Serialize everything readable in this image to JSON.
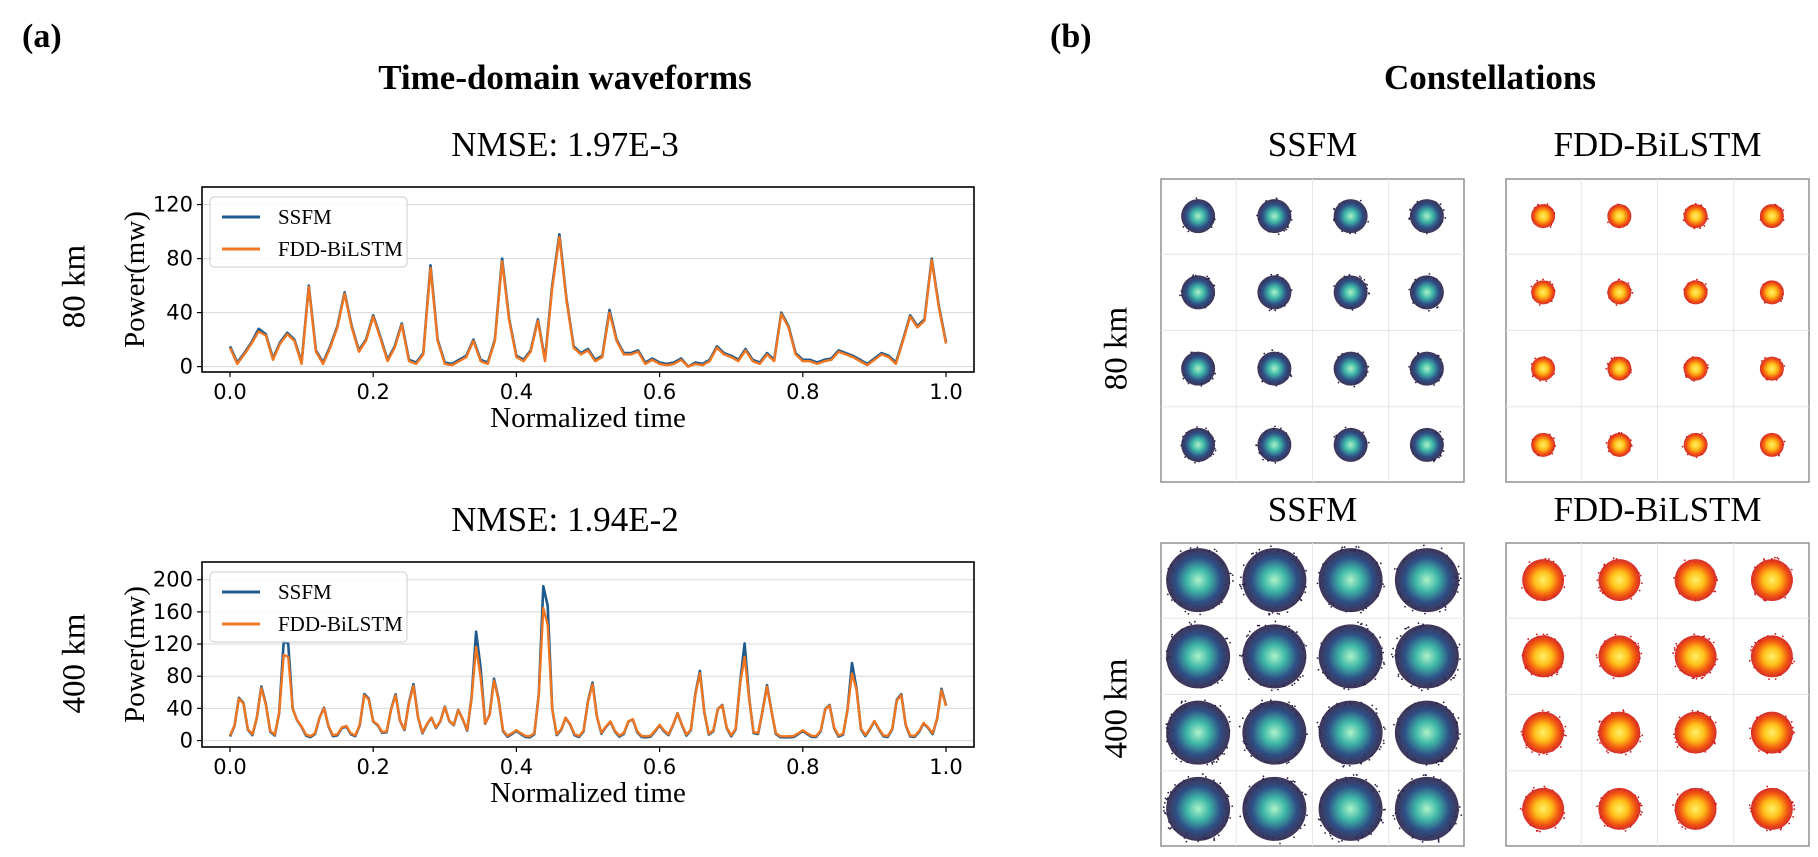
{
  "panel_a_label": "(a)",
  "panel_b_label": "(b)",
  "left_title": "Time-domain waveforms",
  "right_title": "Constellations",
  "colors": {
    "ssfm": "#1f5b8e",
    "fdd": "#f07621",
    "grid": "#d8d8d8"
  },
  "chart_data": [
    {
      "type": "line",
      "title": "NMSE: 1.97E-3",
      "row_label": "80 km",
      "xlabel": "Normalized time",
      "ylabel": "Power(mw)",
      "xlim": [
        0,
        1
      ],
      "ylim": [
        -4,
        133
      ],
      "xticks": [
        0.0,
        0.2,
        0.4,
        0.6,
        0.8,
        1.0
      ],
      "xtick_labels": [
        "0.0",
        "0.2",
        "0.4",
        "0.6",
        "0.8",
        "1.0"
      ],
      "yticks": [
        0,
        40,
        80,
        120
      ],
      "ytick_labels": [
        "0",
        "40",
        "80",
        "120"
      ],
      "grid": "horizontal",
      "legend": "upper-left",
      "series": [
        {
          "name": "SSFM",
          "color": "#1f5b8e",
          "x": [
            0.0,
            0.01,
            0.02,
            0.03,
            0.04,
            0.05,
            0.06,
            0.07,
            0.08,
            0.09,
            0.1,
            0.11,
            0.12,
            0.13,
            0.14,
            0.15,
            0.16,
            0.17,
            0.18,
            0.19,
            0.2,
            0.21,
            0.22,
            0.23,
            0.24,
            0.25,
            0.26,
            0.27,
            0.28,
            0.29,
            0.3,
            0.31,
            0.32,
            0.33,
            0.34,
            0.35,
            0.36,
            0.37,
            0.38,
            0.39,
            0.4,
            0.41,
            0.42,
            0.43,
            0.44,
            0.45,
            0.46,
            0.47,
            0.48,
            0.49,
            0.5,
            0.51,
            0.52,
            0.53,
            0.54,
            0.55,
            0.56,
            0.57,
            0.58,
            0.59,
            0.6,
            0.61,
            0.62,
            0.63,
            0.64,
            0.65,
            0.66,
            0.67,
            0.68,
            0.69,
            0.7,
            0.71,
            0.72,
            0.73,
            0.74,
            0.75,
            0.76,
            0.77,
            0.78,
            0.79,
            0.8,
            0.81,
            0.82,
            0.83,
            0.84,
            0.85,
            0.86,
            0.87,
            0.88,
            0.89,
            0.9,
            0.91,
            0.92,
            0.93,
            0.94,
            0.95,
            0.96,
            0.97,
            0.98,
            0.99,
            1.0
          ],
          "y": [
            15,
            3,
            10,
            18,
            28,
            24,
            6,
            18,
            25,
            20,
            3,
            60,
            12,
            3,
            15,
            30,
            55,
            30,
            12,
            20,
            38,
            22,
            5,
            15,
            32,
            5,
            3,
            10,
            75,
            20,
            3,
            2,
            5,
            8,
            20,
            5,
            3,
            20,
            80,
            35,
            8,
            5,
            12,
            35,
            5,
            60,
            98,
            50,
            15,
            10,
            13,
            5,
            8,
            42,
            20,
            10,
            10,
            12,
            3,
            6,
            3,
            2,
            3,
            6,
            0,
            3,
            2,
            5,
            15,
            10,
            8,
            5,
            13,
            5,
            3,
            10,
            5,
            40,
            30,
            10,
            5,
            5,
            3,
            5,
            6,
            12,
            10,
            8,
            5,
            2,
            6,
            10,
            8,
            3,
            20,
            38,
            30,
            35,
            80,
            45,
            18
          ],
          "note": "values approximate"
        },
        {
          "name": "FDD-BiLSTM",
          "color": "#f07621",
          "y": [
            14,
            2,
            9,
            17,
            26,
            23,
            5,
            17,
            24,
            19,
            2,
            59,
            11,
            2,
            14,
            29,
            54,
            29,
            11,
            19,
            37,
            21,
            4,
            14,
            31,
            4,
            2,
            9,
            73,
            19,
            2,
            1,
            4,
            7,
            19,
            4,
            2,
            19,
            78,
            34,
            7,
            4,
            11,
            34,
            4,
            58,
            96,
            49,
            14,
            9,
            12,
            4,
            7,
            40,
            19,
            9,
            9,
            11,
            2,
            5,
            2,
            1,
            2,
            5,
            0,
            2,
            1,
            4,
            14,
            9,
            7,
            4,
            12,
            4,
            2,
            9,
            4,
            39,
            29,
            9,
            4,
            4,
            2,
            4,
            5,
            11,
            9,
            7,
            4,
            1,
            5,
            9,
            7,
            2,
            19,
            37,
            29,
            34,
            79,
            44,
            17
          ]
        }
      ]
    },
    {
      "type": "line",
      "title": "NMSE: 1.94E-2",
      "row_label": "400 km",
      "xlabel": "Normalized time",
      "ylabel": "Power(mw)",
      "xlim": [
        0,
        1
      ],
      "ylim": [
        -8,
        222
      ],
      "xticks": [
        0.0,
        0.2,
        0.4,
        0.6,
        0.8,
        1.0
      ],
      "xtick_labels": [
        "0.0",
        "0.2",
        "0.4",
        "0.6",
        "0.8",
        "1.0"
      ],
      "yticks": [
        0,
        40,
        80,
        120,
        160,
        200
      ],
      "ytick_labels": [
        "0",
        "40",
        "80",
        "120",
        "160",
        "200"
      ],
      "grid": "horizontal",
      "legend": "upper-left",
      "series": [
        {
          "name": "SSFM",
          "color": "#1f5b8e"
        },
        {
          "name": "FDD-BiLSTM",
          "color": "#f07621"
        }
      ]
    }
  ],
  "constellations": {
    "col_titles": [
      "SSFM",
      "FDD-BiLSTM"
    ],
    "rows": [
      {
        "label": "80 km",
        "titles": [
          "SSFM",
          "FDD-BiLSTM"
        ]
      },
      {
        "label": "400 km",
        "titles": [
          "SSFM",
          "FDD-BiLSTM"
        ]
      }
    ],
    "layout": "16-QAM 4x4 grid"
  },
  "legend": {
    "ssfm": "SSFM",
    "fdd": "FDD-BiLSTM"
  }
}
